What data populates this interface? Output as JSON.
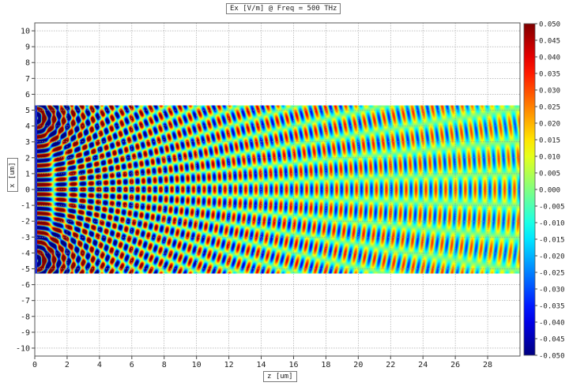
{
  "chart_data": {
    "type": "heatmap",
    "title": "Ex [V/m] @ Freq = 500 THz",
    "xlabel": "z [um]",
    "ylabel": "x [um]",
    "xlim": [
      0,
      30
    ],
    "ylim": [
      -10.5,
      10.5
    ],
    "x_ticks": [
      0,
      2,
      4,
      6,
      8,
      10,
      12,
      14,
      16,
      18,
      20,
      22,
      24,
      26,
      28
    ],
    "y_ticks": [
      10,
      9,
      8,
      7,
      6,
      5,
      4,
      3,
      2,
      1,
      0,
      -1,
      -2,
      -3,
      -4,
      -5,
      -6,
      -7,
      -8,
      -9,
      -10
    ],
    "field_region": {
      "z": [
        0,
        30
      ],
      "x": [
        -5.3,
        5.3
      ]
    },
    "sources": [
      {
        "z": 0,
        "x": 4.5
      },
      {
        "z": 0,
        "x": -4.5
      }
    ],
    "colorbar": {
      "min": -0.05,
      "max": 0.05,
      "ticks": [
        "0.050",
        "0.045",
        "0.040",
        "0.035",
        "0.030",
        "0.025",
        "0.020",
        "0.015",
        "0.010",
        "0.005",
        "0.000",
        "-0.005",
        "-0.010",
        "-0.015",
        "-0.020",
        "-0.025",
        "-0.030",
        "-0.035",
        "-0.040",
        "-0.045",
        "-0.050"
      ],
      "colormap": "jet"
    },
    "grid": true
  }
}
